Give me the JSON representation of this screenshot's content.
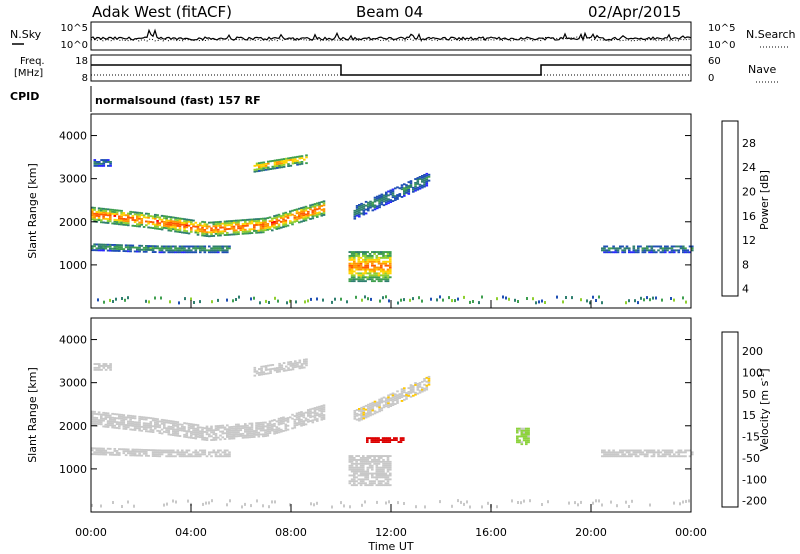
{
  "header": {
    "radar": "Adak West (fitACF)",
    "beam": "Beam 04",
    "date": "02/Apr/2015"
  },
  "strip_labels": {
    "nsky": "N.Sky",
    "nsearch": "N.Search",
    "freq_line1": "Freq.",
    "freq_line2": "[MHz]",
    "nave": "Nave",
    "cpid": "CPID",
    "cpid_value": "normalsound (fast) 157 RF"
  },
  "strip_ticks": {
    "noise_left": [
      "10^5",
      "10^0"
    ],
    "noise_right": [
      "10^5",
      "10^0"
    ],
    "freq_left": [
      "18",
      "8"
    ],
    "nave_right": [
      "60",
      "0"
    ]
  },
  "chart_data": [
    {
      "type": "heatmap",
      "title": "",
      "ylabel": "Slant Range [km]",
      "xlabel": "",
      "ylim": [
        0,
        4500
      ],
      "yticks": [
        1000,
        2000,
        3000,
        4000
      ],
      "xlim_hours": [
        0,
        24
      ],
      "colorbar": {
        "label": "Power [dB]",
        "ticks": [
          "28",
          "24",
          "20",
          "16",
          "12",
          "8",
          "4"
        ],
        "range": [
          0,
          30
        ],
        "colors": [
          "#2828ff",
          "#1f4fb4",
          "#2f7f6f",
          "#3f9f4f",
          "#8fcf2f",
          "#ffd200",
          "#ff9600",
          "#ff5a00",
          "#ff0000",
          "#d20000"
        ]
      },
      "grid": false,
      "echo_regions": [
        {
          "t_start": 0.0,
          "t_end": 9.3,
          "range_center": [
            2150,
            2000,
            1800,
            1900,
            2300
          ],
          "thickness": 320,
          "power_db": 22
        },
        {
          "t_start": 0.0,
          "t_end": 5.5,
          "range_center": [
            1400,
            1350,
            1350
          ],
          "thickness": 160,
          "power_db": 10
        },
        {
          "t_start": 0.1,
          "t_end": 0.8,
          "range_center": [
            3350
          ],
          "thickness": 150,
          "power_db": 8
        },
        {
          "t_start": 6.5,
          "t_end": 8.6,
          "range_center": [
            3250,
            3450
          ],
          "thickness": 220,
          "power_db": 18
        },
        {
          "t_start": 10.3,
          "t_end": 12.0,
          "range_center": [
            950
          ],
          "thickness": 700,
          "power_db": 20
        },
        {
          "t_start": 10.5,
          "t_end": 13.5,
          "range_center": [
            2200,
            3000
          ],
          "thickness": 300,
          "power_db": 8
        },
        {
          "t_start": 20.4,
          "t_end": 24.0,
          "range_center": [
            1350
          ],
          "thickness": 160,
          "power_db": 8
        }
      ]
    },
    {
      "type": "heatmap",
      "title": "",
      "ylabel": "Slant Range [km]",
      "xlabel": "Time UT",
      "ylim": [
        0,
        4500
      ],
      "yticks": [
        1000,
        2000,
        3000,
        4000
      ],
      "xlim_hours": [
        0,
        24
      ],
      "xticks": [
        "00:00",
        "04:00",
        "08:00",
        "12:00",
        "16:00",
        "20:00",
        "00:00"
      ],
      "colorbar": {
        "label": "Velocity [m s^-1]",
        "ticks": [
          "200",
          "100",
          "50",
          "15",
          "-15",
          "-50",
          "-100",
          "-200"
        ],
        "range": [
          -250,
          250
        ],
        "colors": [
          "#dc0000",
          "#ff4600",
          "#ff8c00",
          "#ffc800",
          "#c8c8c8",
          "#c8c8c8",
          "#8cd23c",
          "#3caf3c",
          "#2850b4",
          "#1e28c8"
        ]
      },
      "grid": false,
      "echo_regions": [
        {
          "t_start": 0.0,
          "t_end": 9.3,
          "range_center": [
            2150,
            2000,
            1800,
            1900,
            2300
          ],
          "thickness": 320,
          "velocity": 0
        },
        {
          "t_start": 0.0,
          "t_end": 5.5,
          "range_center": [
            1400,
            1350,
            1350
          ],
          "thickness": 160,
          "velocity": 0
        },
        {
          "t_start": 0.1,
          "t_end": 0.8,
          "range_center": [
            3350
          ],
          "thickness": 150,
          "velocity": 0
        },
        {
          "t_start": 6.5,
          "t_end": 8.6,
          "range_center": [
            3250,
            3450
          ],
          "thickness": 220,
          "velocity": -30
        },
        {
          "t_start": 10.3,
          "t_end": 12.0,
          "range_center": [
            950
          ],
          "thickness": 700,
          "velocity": 0
        },
        {
          "t_start": 11.0,
          "t_end": 12.5,
          "range_center": [
            1650
          ],
          "thickness": 100,
          "velocity": -220
        },
        {
          "t_start": 10.5,
          "t_end": 13.5,
          "range_center": [
            2200,
            3000
          ],
          "thickness": 300,
          "velocity": -40
        },
        {
          "t_start": 17.0,
          "t_end": 17.5,
          "range_center": [
            1750
          ],
          "thickness": 400,
          "velocity": 60
        },
        {
          "t_start": 20.4,
          "t_end": 24.0,
          "range_center": [
            1350
          ],
          "thickness": 160,
          "velocity": 0
        }
      ]
    }
  ]
}
